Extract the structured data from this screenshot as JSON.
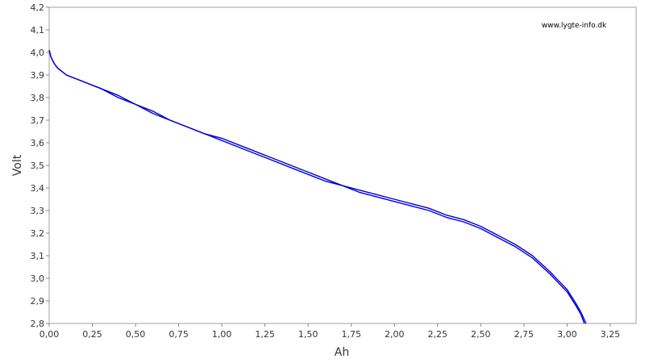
{
  "chart_data": {
    "type": "line",
    "title": "",
    "xlabel": "Ah",
    "ylabel": "Volt",
    "watermark": "www.lygte-info.dk",
    "xlim": [
      0,
      3.4
    ],
    "ylim": [
      2.8,
      4.2
    ],
    "x_ticks": [
      "0,00",
      "0,25",
      "0,50",
      "0,75",
      "1,00",
      "1,25",
      "1,50",
      "1,75",
      "2,00",
      "2,25",
      "2,50",
      "2,75",
      "3,00",
      "3,25"
    ],
    "y_ticks": [
      "2,8",
      "2,9",
      "3,0",
      "3,1",
      "3,2",
      "3,3",
      "3,4",
      "3,5",
      "3,6",
      "3,7",
      "3,8",
      "3,9",
      "4,0",
      "4,1",
      "4,2"
    ],
    "grid": false,
    "series": [
      {
        "color": "#0000cc",
        "x": [
          0.0,
          0.01,
          0.03,
          0.05,
          0.1,
          0.2,
          0.3,
          0.4,
          0.5,
          0.6,
          0.7,
          0.8,
          0.9,
          1.0,
          1.1,
          1.2,
          1.3,
          1.4,
          1.5,
          1.6,
          1.7,
          1.8,
          1.9,
          2.0,
          2.1,
          2.2,
          2.3,
          2.4,
          2.5,
          2.6,
          2.7,
          2.8,
          2.9,
          2.95,
          3.0,
          3.05,
          3.08,
          3.1
        ],
        "y": [
          4.01,
          3.98,
          3.95,
          3.93,
          3.9,
          3.87,
          3.84,
          3.8,
          3.77,
          3.73,
          3.7,
          3.67,
          3.64,
          3.61,
          3.58,
          3.55,
          3.52,
          3.49,
          3.46,
          3.43,
          3.41,
          3.38,
          3.36,
          3.34,
          3.32,
          3.3,
          3.27,
          3.25,
          3.22,
          3.18,
          3.14,
          3.09,
          3.02,
          2.98,
          2.94,
          2.88,
          2.84,
          2.8
        ]
      },
      {
        "color": "#0000cc",
        "x": [
          0.0,
          0.01,
          0.03,
          0.05,
          0.1,
          0.2,
          0.3,
          0.4,
          0.5,
          0.6,
          0.7,
          0.8,
          0.9,
          1.0,
          1.1,
          1.2,
          1.3,
          1.4,
          1.5,
          1.6,
          1.7,
          1.8,
          1.9,
          2.0,
          2.1,
          2.2,
          2.3,
          2.4,
          2.5,
          2.6,
          2.7,
          2.8,
          2.9,
          2.95,
          3.0,
          3.05,
          3.08,
          3.11
        ],
        "y": [
          4.01,
          3.98,
          3.95,
          3.93,
          3.9,
          3.87,
          3.84,
          3.81,
          3.77,
          3.74,
          3.7,
          3.67,
          3.64,
          3.62,
          3.59,
          3.56,
          3.53,
          3.5,
          3.47,
          3.44,
          3.41,
          3.39,
          3.37,
          3.35,
          3.33,
          3.31,
          3.28,
          3.26,
          3.23,
          3.19,
          3.15,
          3.1,
          3.03,
          2.99,
          2.95,
          2.89,
          2.85,
          2.8
        ]
      }
    ]
  }
}
